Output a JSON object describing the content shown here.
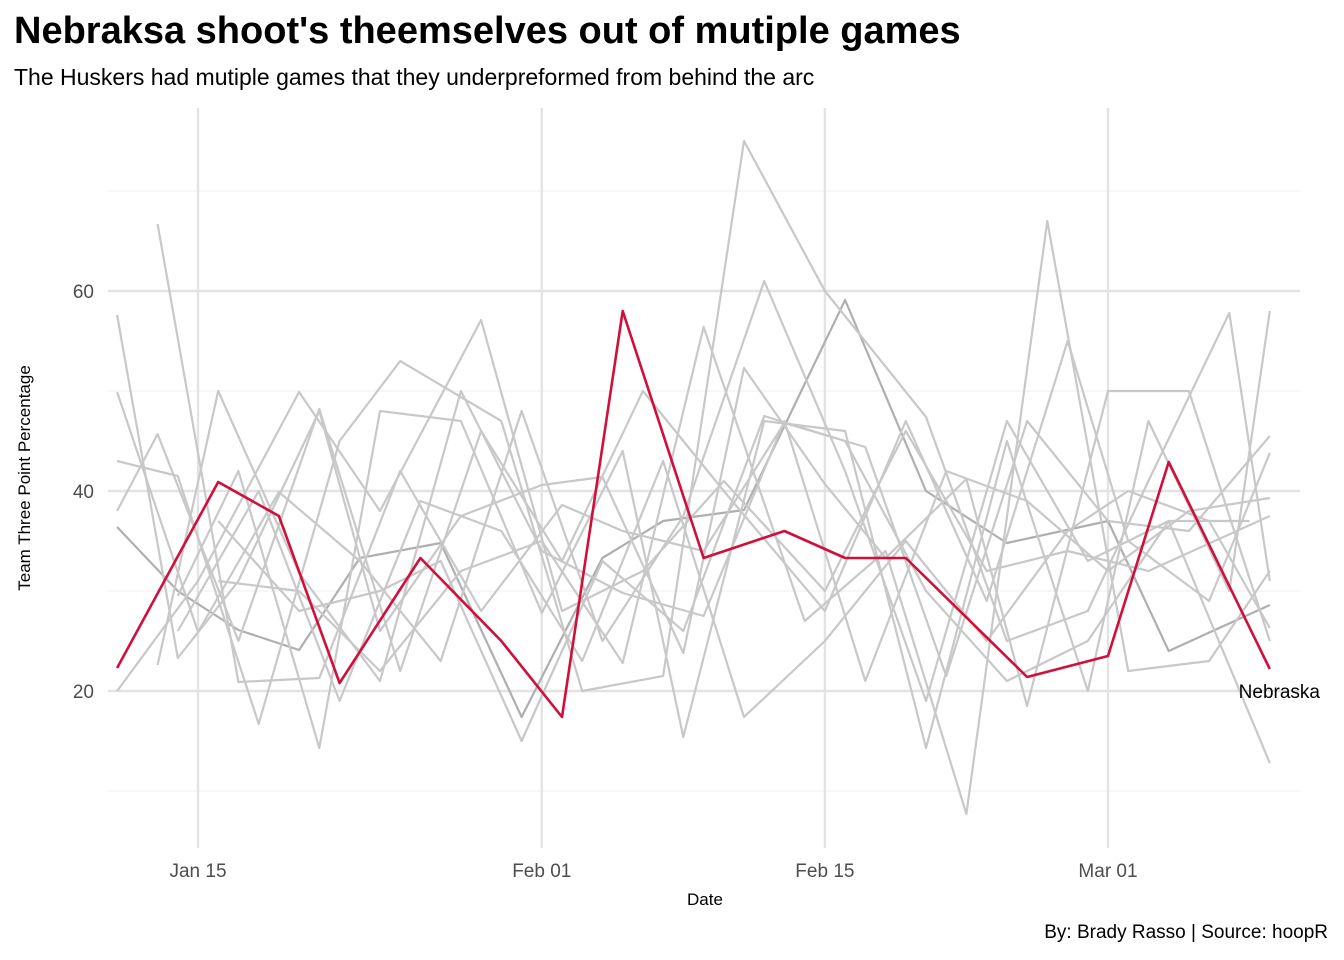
{
  "title": "Nebraksa shoot's theemselves out of mutiple games",
  "subtitle": "The Huskers had mutiple games that they underpreformed from behind the arc",
  "caption": "By: Brady Rasso | Source: hoopR",
  "chart_data": {
    "type": "line",
    "xlabel": "Date",
    "ylabel": "Team Three Point Percentage",
    "x_tick_labels": [
      "Jan 15",
      "Feb 01",
      "Feb 15",
      "Mar 01"
    ],
    "x_ticks": [
      "2023-01-15",
      "2023-02-01",
      "2023-02-15",
      "2023-03-01"
    ],
    "y_ticks": [
      20,
      40,
      60
    ],
    "xlim": [
      "2022-01-11",
      "2022-03-09"
    ],
    "ylim": [
      4.5,
      74.8
    ],
    "grid": true,
    "colors": {
      "highlight": "#D0103A",
      "others": "#C8C8C8",
      "others_dark": "#AFAFAF",
      "grid": "#E3E3E3"
    },
    "highlight_label": "Nebraska",
    "highlight_series": {
      "x": [
        "2023-01-11",
        "2023-01-16",
        "2023-01-19",
        "2023-01-22",
        "2023-01-26",
        "2023-01-30",
        "2023-02-02",
        "2023-02-05",
        "2023-02-09",
        "2023-02-13",
        "2023-02-16",
        "2023-02-19",
        "2023-02-25",
        "2023-03-01",
        "2023-03-04",
        "2023-03-09"
      ],
      "y": [
        22.3,
        40.9,
        37.5,
        20.8,
        33.3,
        25.0,
        17.4,
        58.0,
        33.3,
        36.0,
        33.3,
        33.3,
        21.4,
        23.5,
        42.9,
        22.2
      ]
    },
    "background_series": [
      {
        "tone": "dark",
        "x": [
          "2023-01-11",
          "2023-01-14",
          "2023-01-17",
          "2023-01-20",
          "2023-01-23",
          "2023-01-27",
          "2023-01-31",
          "2023-02-04",
          "2023-02-07",
          "2023-02-11",
          "2023-02-16",
          "2023-02-20",
          "2023-02-24",
          "2023-03-01",
          "2023-03-04",
          "2023-03-09"
        ],
        "y": [
          36.4,
          30.0,
          26.1,
          24.1,
          33.3,
          34.8,
          17.4,
          33.3,
          37.0,
          38.1,
          59.1,
          40.0,
          34.8,
          37.0,
          24.0,
          28.6
        ]
      },
      {
        "tone": "light",
        "x": [
          "2023-01-11",
          "2023-01-14",
          "2023-01-17",
          "2023-01-21",
          "2023-01-24",
          "2023-01-28",
          "2023-02-01",
          "2023-02-04",
          "2023-02-08",
          "2023-02-11",
          "2023-02-15",
          "2023-02-18",
          "2023-02-22",
          "2023-02-25",
          "2023-03-01",
          "2023-03-05",
          "2023-03-09"
        ],
        "y": [
          57.6,
          23.3,
          31.0,
          48.0,
          26.0,
          37.5,
          40.6,
          41.4,
          23.8,
          52.3,
          40.7,
          33.3,
          41.2,
          18.5,
          50.0,
          50.0,
          25.0
        ]
      },
      {
        "tone": "light",
        "x": [
          "2023-01-11",
          "2023-01-15",
          "2023-01-19",
          "2023-01-23",
          "2023-01-27",
          "2023-01-31",
          "2023-02-04",
          "2023-02-08",
          "2023-02-12",
          "2023-02-16",
          "2023-02-20",
          "2023-02-24",
          "2023-02-28",
          "2023-03-04",
          "2023-03-09"
        ],
        "y": [
          49.9,
          25.9,
          39.9,
          33.0,
          23.0,
          48.0,
          25.0,
          37.5,
          61.0,
          42.0,
          19.0,
          47.0,
          33.0,
          37.0,
          12.8
        ]
      },
      {
        "tone": "light",
        "x": [
          "2023-01-11",
          "2023-01-15",
          "2023-01-20",
          "2023-01-24",
          "2023-01-29",
          "2023-02-02",
          "2023-02-06",
          "2023-02-10",
          "2023-02-15",
          "2023-02-19",
          "2023-02-23",
          "2023-02-27",
          "2023-03-03",
          "2023-03-09"
        ],
        "y": [
          20.0,
          31.0,
          49.9,
          38.0,
          57.1,
          28.0,
          32.0,
          41.0,
          30.0,
          46.0,
          32.0,
          34.0,
          32.0,
          37.5
        ]
      },
      {
        "tone": "light",
        "x": [
          "2023-01-11",
          "2023-01-13",
          "2023-01-17",
          "2023-01-21",
          "2023-01-25",
          "2023-01-29",
          "2023-02-02",
          "2023-02-06",
          "2023-02-10",
          "2023-02-15",
          "2023-02-19",
          "2023-02-23",
          "2023-02-27",
          "2023-03-02",
          "2023-03-06",
          "2023-03-09"
        ],
        "y": [
          38.0,
          45.7,
          25.0,
          48.2,
          22.0,
          46.0,
          33.0,
          50.0,
          40.0,
          28.0,
          47.0,
          29.0,
          55.0,
          35.0,
          29.0,
          43.8
        ]
      },
      {
        "tone": "light",
        "x": [
          "2023-01-11",
          "2023-01-14",
          "2023-01-18",
          "2023-01-22",
          "2023-01-25",
          "2023-01-30",
          "2023-02-03",
          "2023-02-07",
          "2023-02-11",
          "2023-02-15",
          "2023-02-20",
          "2023-02-24",
          "2023-02-28",
          "2023-03-03",
          "2023-03-07",
          "2023-03-09"
        ],
        "y": [
          43.0,
          41.5,
          16.7,
          45.0,
          53.0,
          47.0,
          20.0,
          21.5,
          75.0,
          60.0,
          47.4,
          25.0,
          28.0,
          41.0,
          57.8,
          31.0
        ]
      },
      {
        "tone": "light",
        "x": [
          "2023-01-13",
          "2023-01-17",
          "2023-01-21",
          "2023-01-25",
          "2023-01-29",
          "2023-02-02",
          "2023-02-05",
          "2023-02-09",
          "2023-02-13",
          "2023-02-17",
          "2023-02-21",
          "2023-02-25",
          "2023-03-01",
          "2023-03-05",
          "2023-03-09"
        ],
        "y": [
          66.7,
          20.9,
          21.3,
          42.0,
          28.0,
          38.6,
          36.0,
          34.0,
          46.8,
          44.4,
          21.5,
          47.0,
          37.0,
          36.0,
          45.5
        ]
      },
      {
        "tone": "light",
        "x": [
          "2023-01-13",
          "2023-01-16",
          "2023-01-20",
          "2023-01-24",
          "2023-01-28",
          "2023-02-01",
          "2023-02-05",
          "2023-02-09",
          "2023-02-13",
          "2023-02-17",
          "2023-02-21",
          "2023-02-25",
          "2023-03-01",
          "2023-03-05",
          "2023-03-09"
        ],
        "y": [
          22.6,
          50.0,
          31.8,
          21.0,
          50.0,
          34.0,
          29.8,
          27.5,
          47.0,
          21.0,
          42.0,
          39.0,
          32.0,
          38.0,
          39.3
        ]
      },
      {
        "tone": "light",
        "x": [
          "2023-01-14",
          "2023-01-17",
          "2023-01-21",
          "2023-01-24",
          "2023-01-28",
          "2023-02-01",
          "2023-02-05",
          "2023-02-08",
          "2023-02-12",
          "2023-02-16",
          "2023-02-20",
          "2023-02-24",
          "2023-02-28",
          "2023-03-03",
          "2023-03-07",
          "2023-03-09"
        ],
        "y": [
          29.5,
          42.0,
          14.3,
          48.0,
          47.0,
          27.8,
          44.0,
          15.4,
          47.0,
          46.0,
          14.3,
          45.0,
          20.0,
          47.0,
          30.0,
          58.0
        ]
      },
      {
        "tone": "light",
        "x": [
          "2023-01-14",
          "2023-01-18",
          "2023-01-22",
          "2023-01-26",
          "2023-01-30",
          "2023-02-03",
          "2023-02-07",
          "2023-02-11",
          "2023-02-15",
          "2023-02-19",
          "2023-02-23",
          "2023-02-27",
          "2023-03-02",
          "2023-03-06",
          "2023-03-09"
        ],
        "y": [
          26.0,
          40.0,
          19.0,
          39.0,
          36.0,
          23.0,
          43.0,
          17.4,
          25.0,
          35.0,
          25.0,
          36.0,
          40.0,
          37.0,
          26.3
        ]
      },
      {
        "tone": "light",
        "x": [
          "2023-01-16",
          "2023-01-20",
          "2023-01-24",
          "2023-01-28",
          "2023-02-01",
          "2023-02-05",
          "2023-02-09",
          "2023-02-14",
          "2023-02-18",
          "2023-02-22",
          "2023-02-26",
          "2023-03-02",
          "2023-03-06",
          "2023-03-09"
        ],
        "y": [
          31.0,
          30.0,
          22.0,
          32.0,
          35.0,
          22.8,
          56.4,
          27.0,
          34.0,
          7.7,
          67.0,
          22.0,
          23.0,
          32.0
        ]
      },
      {
        "tone": "light",
        "x": [
          "2023-01-16",
          "2023-01-20",
          "2023-01-24",
          "2023-01-27",
          "2023-01-31",
          "2023-02-04",
          "2023-02-08",
          "2023-02-12",
          "2023-02-16",
          "2023-02-20",
          "2023-02-24",
          "2023-02-28",
          "2023-03-04",
          "2023-03-08"
        ],
        "y": [
          37.0,
          28.0,
          30.0,
          33.0,
          15.0,
          33.0,
          26.0,
          47.5,
          45.0,
          30.0,
          21.0,
          25.0,
          37.0,
          37.0
        ]
      }
    ]
  }
}
